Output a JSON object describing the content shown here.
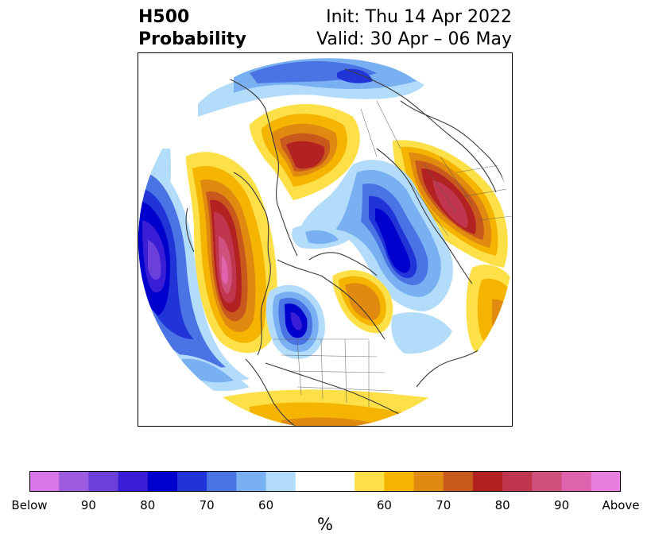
{
  "title": {
    "variable": "H500",
    "product": "Probability",
    "init": "Init: Thu 14 Apr 2022",
    "valid": "Valid: 30 Apr – 06 May"
  },
  "map": {
    "projection": "north-polar-stereographic",
    "coastline_color": "#3a3a3a"
  },
  "colorbar": {
    "colors": [
      "#d676e8",
      "#9d5ce0",
      "#6b3fd9",
      "#3a1ed6",
      "#0000cc",
      "#2134d8",
      "#4a73e3",
      "#78b0f2",
      "#b2dcf9",
      "#ffffff",
      "#fde047",
      "#f4b400",
      "#e08a10",
      "#c9581c",
      "#b22222",
      "#c0364e",
      "#cf527e",
      "#df64ad",
      "#e77ee0"
    ],
    "tick_labels": [
      "Below",
      "90",
      "80",
      "70",
      "60",
      "60",
      "70",
      "80",
      "90",
      "Above"
    ],
    "unit": "%"
  }
}
